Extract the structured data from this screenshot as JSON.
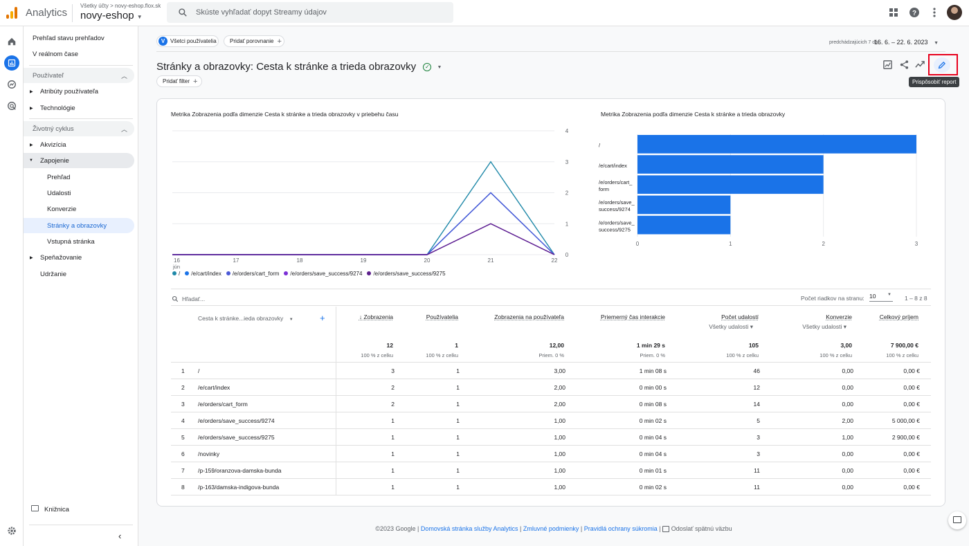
{
  "header": {
    "app_name": "Analytics",
    "breadcrumb_all": "Všetky účty",
    "breadcrumb_sep": ">",
    "breadcrumb_account": "novy-eshop.flox.sk",
    "property": "novy-eshop",
    "search_placeholder": "Skúste vyhľadať dopyt Streamy údajov"
  },
  "nav": {
    "overview": "Prehľad stavu prehľadov",
    "realtime": "V reálnom čase",
    "section_user": "Používateľ",
    "user_attributes": "Atribúty používateľa",
    "technology": "Technológie",
    "section_lifecycle": "Životný cyklus",
    "acquisition": "Akvizícia",
    "engagement": "Zapojenie",
    "engagement_overview": "Prehľad",
    "events": "Udalosti",
    "conversions": "Konverzie",
    "pages": "Stránky a obrazovky",
    "landing": "Vstupná stránka",
    "monetization": "Speňažovanie",
    "retention": "Udržanie",
    "library": "Knižnica"
  },
  "toolbar": {
    "segment": "Všetci používatelia",
    "segment_badge": "V",
    "add_comparison": "Pridať porovnanie",
    "date_label": "predchádzajúcich 7 dní",
    "date_range": "16. 6. – 22. 6. 2023",
    "title": "Stránky a obrazovky: Cesta k stránke a trieda obrazovky",
    "add_filter": "Pridať filter",
    "tooltip": "Prispôsobiť report"
  },
  "line_chart": {
    "title": "Metrika Zobrazenia podľa dimenzie Cesta k stránke a trieda obrazovky v priebehu času",
    "x_ticks": [
      "16",
      "17",
      "18",
      "19",
      "20",
      "21",
      "22"
    ],
    "x_sub": "jún",
    "y_ticks": [
      "0",
      "1",
      "2",
      "3",
      "4"
    ],
    "ylim": [
      0,
      4
    ],
    "series": [
      {
        "name": "/",
        "color": "#1e88a8",
        "values": [
          0,
          0,
          0,
          0,
          0,
          3,
          0
        ]
      },
      {
        "name": "/e/cart/index",
        "color": "#1a73e8",
        "values": [
          0,
          0,
          0,
          0,
          0,
          2,
          0
        ]
      },
      {
        "name": "/e/orders/cart_form",
        "color": "#4a58d6",
        "values": [
          0,
          0,
          0,
          0,
          0,
          2,
          0
        ]
      },
      {
        "name": "/e/orders/save_success/9274",
        "color": "#7b2fd6",
        "values": [
          0,
          0,
          0,
          0,
          0,
          1,
          0
        ]
      },
      {
        "name": "/e/orders/save_success/9275",
        "color": "#5c1f8c",
        "values": [
          0,
          0,
          0,
          0,
          0,
          1,
          0
        ]
      }
    ]
  },
  "chart_data": {
    "type": "bar",
    "title": "Metrika Zobrazenia podľa dimenzie Cesta k stránke a trieda obrazovky",
    "categories": [
      "/",
      "/e/cart/index",
      "/e/orders/cart_\nform",
      "/e/orders/save_\nsuccess/9274",
      "/e/orders/save_\nsuccess/9275"
    ],
    "values": [
      3,
      2,
      2,
      1,
      1
    ],
    "x_ticks": [
      "0",
      "1",
      "2",
      "3"
    ],
    "xlim": [
      0,
      3
    ],
    "color": "#1a73e8"
  },
  "table": {
    "search_placeholder": "Hľadať...",
    "rows_per_page_label": "Počet riadkov na stranu:",
    "rows_per_page": "10",
    "pagination": "1 – 8 z 8",
    "dimension_header": "Cesta k stránke...ieda obrazovky",
    "add_dim": "+",
    "columns": [
      {
        "label": "Zobrazenia",
        "total": "12",
        "sub": "100 % z celku",
        "sorted": true
      },
      {
        "label": "Používatelia",
        "total": "1",
        "sub": "100 % z celku"
      },
      {
        "label": "Zobrazenia na používateľa",
        "total": "12,00",
        "sub": "Priem. 0 %"
      },
      {
        "label": "Priemerný čas interakcie",
        "total": "1 min 29 s",
        "sub": "Priem. 0 %"
      },
      {
        "label": "Počet udalostí",
        "dropdown": "Všetky udalosti",
        "total": "105",
        "sub": "100 % z celku"
      },
      {
        "label": "Konverzie",
        "dropdown": "Všetky udalosti",
        "total": "3,00",
        "sub": "100 % z celku"
      },
      {
        "label": "Celkový príjem",
        "total": "7 900,00 €",
        "sub": "100 % z celku"
      }
    ],
    "rows": [
      {
        "n": "1",
        "path": "/",
        "v": [
          "3",
          "1",
          "3,00",
          "1 min 08 s",
          "46",
          "0,00",
          "0,00 €"
        ]
      },
      {
        "n": "2",
        "path": "/e/cart/index",
        "v": [
          "2",
          "1",
          "2,00",
          "0 min 00 s",
          "12",
          "0,00",
          "0,00 €"
        ]
      },
      {
        "n": "3",
        "path": "/e/orders/cart_form",
        "v": [
          "2",
          "1",
          "2,00",
          "0 min 08 s",
          "14",
          "0,00",
          "0,00 €"
        ]
      },
      {
        "n": "4",
        "path": "/e/orders/save_success/9274",
        "v": [
          "1",
          "1",
          "1,00",
          "0 min 02 s",
          "5",
          "2,00",
          "5 000,00 €"
        ]
      },
      {
        "n": "5",
        "path": "/e/orders/save_success/9275",
        "v": [
          "1",
          "1",
          "1,00",
          "0 min 04 s",
          "3",
          "1,00",
          "2 900,00 €"
        ]
      },
      {
        "n": "6",
        "path": "/novinky",
        "v": [
          "1",
          "1",
          "1,00",
          "0 min 04 s",
          "3",
          "0,00",
          "0,00 €"
        ]
      },
      {
        "n": "7",
        "path": "/p-159/oranzova-damska-bunda",
        "v": [
          "1",
          "1",
          "1,00",
          "0 min 01 s",
          "11",
          "0,00",
          "0,00 €"
        ]
      },
      {
        "n": "8",
        "path": "/p-163/damska-indigova-bunda",
        "v": [
          "1",
          "1",
          "1,00",
          "0 min 02 s",
          "11",
          "0,00",
          "0,00 €"
        ]
      }
    ]
  },
  "footer": {
    "copyright": "©2023 Google",
    "sep": "|",
    "link1": "Domovská stránka služby Analytics",
    "link2": "Zmluvné podmienky",
    "link3": "Pravidlá ochrany súkromia",
    "feedback": "Odoslať spätnú väzbu"
  }
}
